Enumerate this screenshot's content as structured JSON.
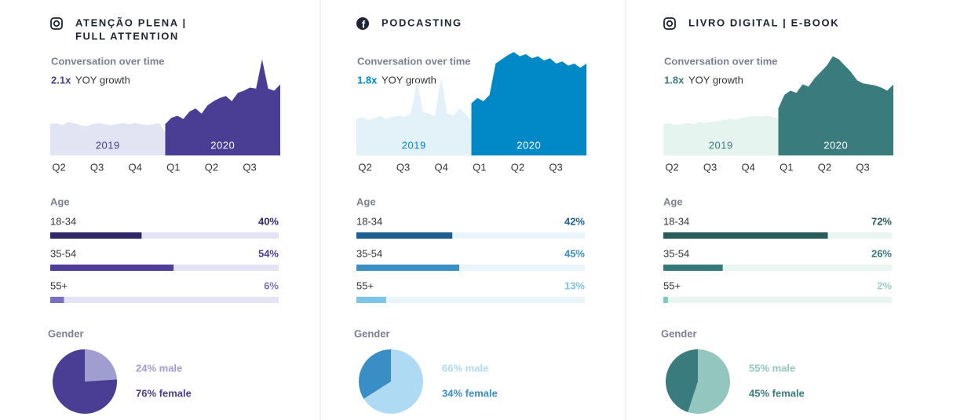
{
  "panels": [
    {
      "icon": "instagram",
      "title": [
        "ATENÇÃO PLENA |",
        "FULL ATTENTION"
      ],
      "conversation": {
        "type": "area",
        "subtitle": "Conversation over time",
        "growth": "2.1x",
        "growth_label": "YOY growth",
        "ylim": [
          0,
          100
        ],
        "xticks": [
          "Q2",
          "Q3",
          "Q4",
          "Q1",
          "Q2",
          "Q3"
        ],
        "series": [
          {
            "name": "2019",
            "color": "#e3e4f3",
            "values": [
              30,
              31,
              29,
              32,
              31,
              29,
              28,
              30,
              31,
              30,
              29,
              30,
              31,
              30,
              31,
              30,
              29,
              30,
              31,
              22
            ]
          },
          {
            "name": "2020",
            "color": "#4a3d94",
            "values": [
              30,
              36,
              38,
              35,
              42,
              45,
              40,
              48,
              52,
              55,
              57,
              52,
              60,
              62,
              65,
              64,
              92,
              64,
              62,
              68
            ]
          }
        ]
      },
      "age": {
        "type": "bar",
        "title": "Age",
        "categories": [
          "18-34",
          "35-54",
          "55+"
        ],
        "values": [
          40,
          54,
          6
        ],
        "value_labels": [
          "40%",
          "54%",
          "6%"
        ],
        "colors": [
          "#2e2866",
          "#4f3d99",
          "#7a6fc0"
        ],
        "label_colors": [
          "#2e2866",
          "#4f3d99",
          "#7a6fc0"
        ],
        "track_color": "#e3e3f3",
        "xlim": [
          0,
          100
        ]
      },
      "gender": {
        "type": "pie",
        "title": "Gender",
        "values": [
          24,
          76
        ],
        "value_labels": [
          "24% male",
          "76% female"
        ],
        "colors": [
          "#a09dd0",
          "#4a3d94"
        ]
      }
    },
    {
      "icon": "facebook",
      "title": [
        "PODCASTING"
      ],
      "conversation": {
        "type": "area",
        "subtitle": "Conversation over time",
        "growth": "1.8x",
        "growth_label": "YOY growth",
        "ylim": [
          0,
          100
        ],
        "xticks": [
          "Q2",
          "Q3",
          "Q4",
          "Q1",
          "Q2",
          "Q3"
        ],
        "series": [
          {
            "name": "2019",
            "color": "#e3f2f9",
            "values": [
              35,
              37,
              34,
              36,
              38,
              35,
              37,
              38,
              37,
              40,
              72,
              42,
              40,
              38,
              75,
              40,
              38,
              45,
              40,
              33
            ]
          },
          {
            "name": "2020",
            "color": "#0088c7",
            "values": [
              50,
              55,
              52,
              58,
              88,
              92,
              96,
              99,
              95,
              97,
              93,
              95,
              91,
              93,
              88,
              90,
              86,
              88,
              84,
              88
            ]
          }
        ]
      },
      "age": {
        "type": "bar",
        "title": "Age",
        "categories": [
          "18-34",
          "35-54",
          "55+"
        ],
        "values": [
          42,
          45,
          13
        ],
        "value_labels": [
          "42%",
          "45%",
          "13%"
        ],
        "colors": [
          "#1f5f8f",
          "#3a8fc4",
          "#7cc4e8"
        ],
        "label_colors": [
          "#1f5f8f",
          "#3a8fc4",
          "#7cc4e8"
        ],
        "track_color": "#eaf4fb",
        "xlim": [
          0,
          100
        ]
      },
      "gender": {
        "type": "pie",
        "title": "Gender",
        "values": [
          66,
          34
        ],
        "value_labels": [
          "66% male",
          "34% female"
        ],
        "colors": [
          "#aedaf3",
          "#3a8ec6"
        ]
      }
    },
    {
      "icon": "instagram",
      "title": [
        "LIVRO DIGITAL | E-BOOK"
      ],
      "conversation": {
        "type": "area",
        "subtitle": "Conversation over time",
        "growth": "1.8x",
        "growth_label": "YOY growth",
        "ylim": [
          0,
          100
        ],
        "xticks": [
          "Q2",
          "Q3",
          "Q4",
          "Q1",
          "Q2",
          "Q3"
        ],
        "series": [
          {
            "name": "2019",
            "color": "#e5f4ef",
            "values": [
              30,
              31,
              29,
              30,
              31,
              30,
              32,
              31,
              32,
              33,
              34,
              35,
              34,
              36,
              37,
              38,
              37,
              38,
              37,
              36
            ]
          },
          {
            "name": "2020",
            "color": "#3a7b7d",
            "values": [
              45,
              58,
              62,
              60,
              68,
              66,
              74,
              80,
              86,
              95,
              92,
              86,
              80,
              72,
              69,
              68,
              67,
              65,
              62,
              68
            ]
          }
        ]
      },
      "age": {
        "type": "bar",
        "title": "Age",
        "categories": [
          "18-34",
          "35-54",
          "55+"
        ],
        "values": [
          72,
          26,
          2
        ],
        "value_labels": [
          "72%",
          "26%",
          "2%"
        ],
        "colors": [
          "#2a5a5a",
          "#347a7a",
          "#7ccbc0"
        ],
        "label_colors": [
          "#2a5a5a",
          "#347a7a",
          "#9bd0c6"
        ],
        "track_color": "#eaf5f2",
        "xlim": [
          0,
          100
        ]
      },
      "gender": {
        "type": "pie",
        "title": "Gender",
        "values": [
          55,
          45
        ],
        "value_labels": [
          "55% male",
          "45% female"
        ],
        "colors": [
          "#93c6be",
          "#3a7b7d"
        ]
      }
    }
  ]
}
